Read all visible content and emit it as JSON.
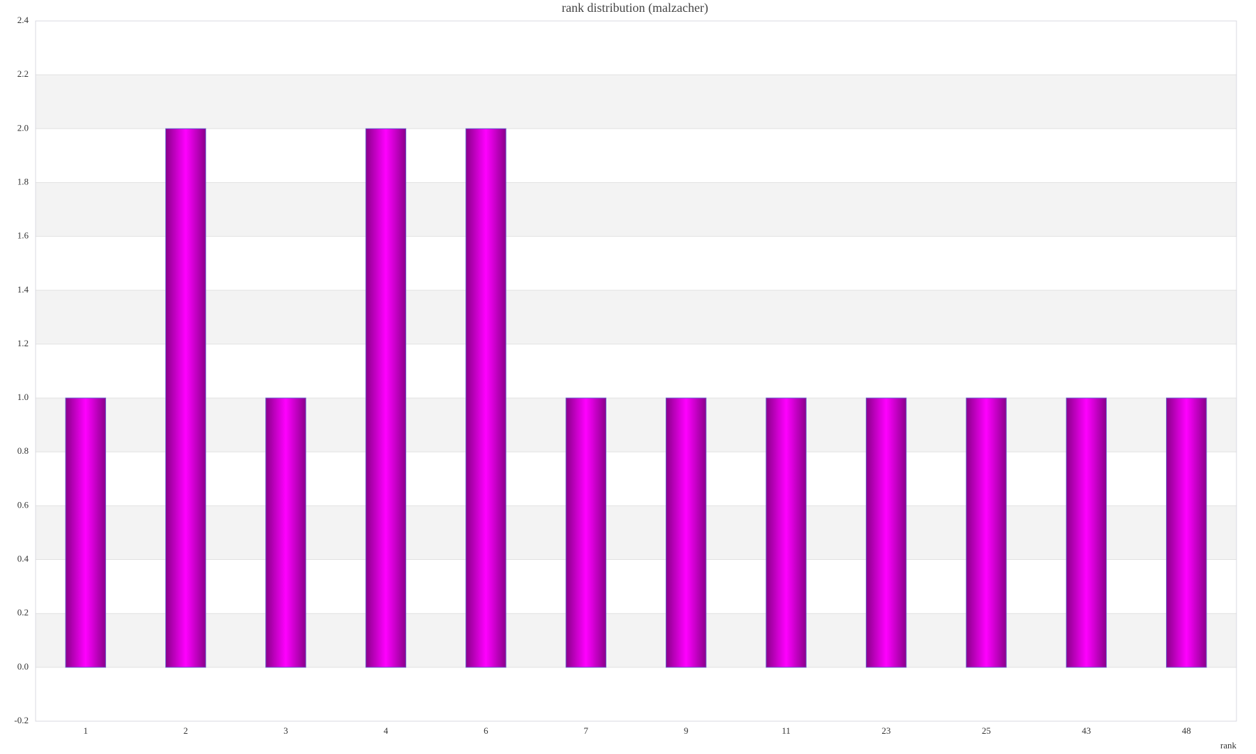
{
  "chart_data": {
    "type": "bar",
    "title": "rank distribution (malzacher)",
    "x_label": "rank",
    "categories": [
      "1",
      "2",
      "3",
      "4",
      "6",
      "7",
      "9",
      "11",
      "23",
      "25",
      "43",
      "48"
    ],
    "values": [
      1,
      2,
      1,
      2,
      2,
      1,
      1,
      1,
      1,
      1,
      1,
      1
    ],
    "color": "#ff00ff",
    "ylim": [
      -0.2,
      2.4
    ],
    "yticks": [
      -0.2,
      {
        "value": 0,
        "label": "0.0"
      },
      0.2,
      0.4,
      0.6,
      0.8,
      {
        "value": 1,
        "label": "1.0"
      },
      1.2,
      1.4,
      1.6,
      1.8,
      {
        "value": 2,
        "label": "2.0"
      },
      2.2,
      2.4
    ],
    "grid": true
  }
}
